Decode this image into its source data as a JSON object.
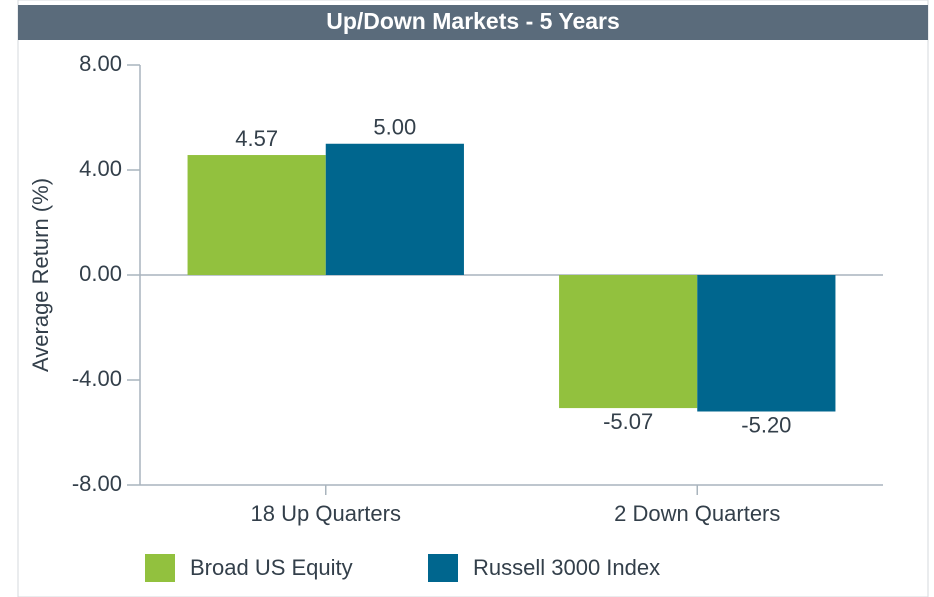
{
  "chart_data": {
    "type": "bar",
    "title": "Up/Down Markets - 5 Years",
    "y_label": "Average Return (%)",
    "categories": [
      "18 Up Quarters",
      "2 Down Quarters"
    ],
    "series": [
      {
        "name": "Broad US Equity",
        "color": "#92c13e",
        "values": [
          4.57,
          -5.07
        ],
        "value_labels": [
          "4.57",
          "-5.07"
        ]
      },
      {
        "name": "Russell 3000 Index",
        "color": "#00668e",
        "values": [
          5.0,
          -5.2
        ],
        "value_labels": [
          "5.00",
          "-5.20"
        ]
      }
    ],
    "ylim": [
      -8,
      8
    ],
    "yticks": [
      {
        "value": 8,
        "label": "8.00"
      },
      {
        "value": 4,
        "label": "4.00"
      },
      {
        "value": 0,
        "label": "0.00"
      },
      {
        "value": -4,
        "label": "-4.00"
      },
      {
        "value": -8,
        "label": "-8.00"
      }
    ],
    "grid": false,
    "legend": "bottom"
  }
}
